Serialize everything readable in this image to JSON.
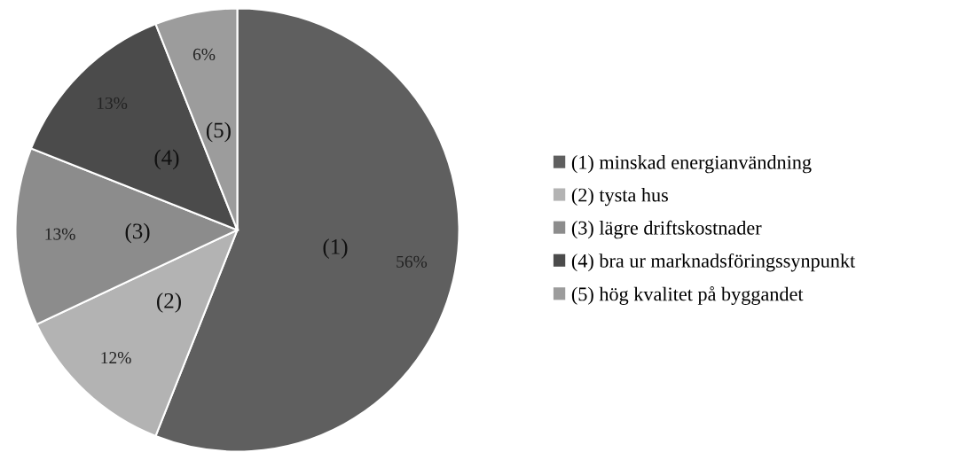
{
  "chart_data": {
    "type": "pie",
    "categories": [
      "(1) minskad energianvändning",
      "(2) tysta hus",
      "(3) lägre driftskostnader",
      "(4) bra ur marknadsföringssynpunkt",
      "(5) hög kvalitet på byggandet"
    ],
    "values": [
      56,
      12,
      13,
      13,
      6
    ],
    "colors": [
      "#5f5f5f",
      "#b3b3b3",
      "#8c8c8c",
      "#4b4b4b",
      "#9c9c9c"
    ],
    "value_labels": [
      "56%",
      "12%",
      "13%",
      "13%",
      "6%"
    ],
    "annotations": [
      "(1)",
      "(2)",
      "(3)",
      "(4)",
      "(5)"
    ],
    "legend": "right"
  }
}
